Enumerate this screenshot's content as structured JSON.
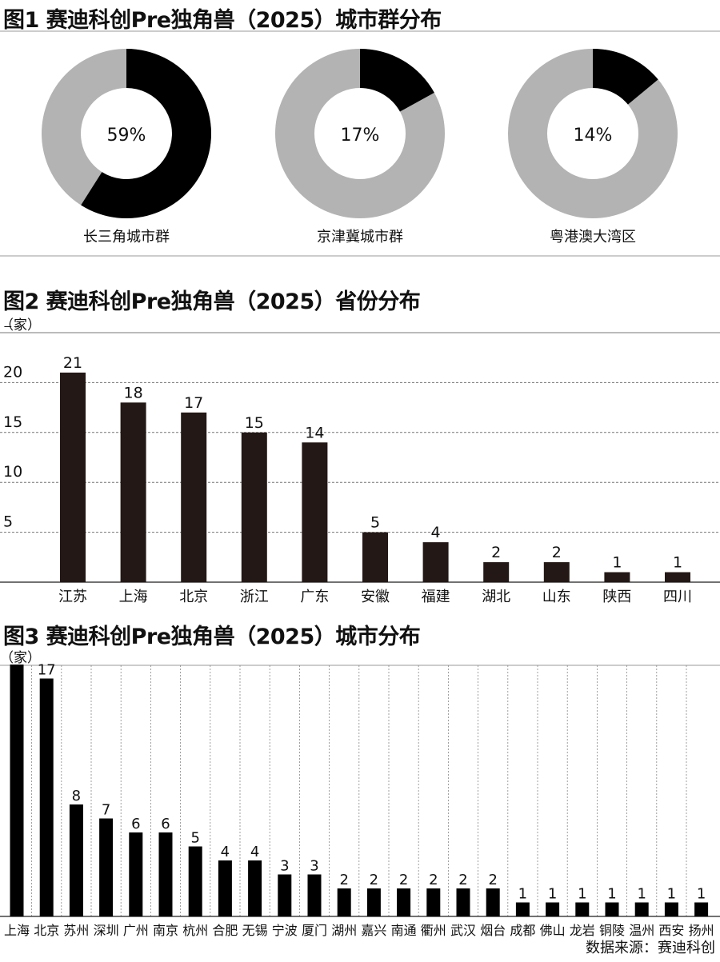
{
  "chart_data": [
    {
      "type": "pie",
      "title": "图1 赛迪科创Pre独角兽（2025）城市群分布",
      "slices": [
        {
          "label": "长三角城市群",
          "value": 59,
          "value_label": "59%"
        },
        {
          "label": "京津冀城市群",
          "value": 17,
          "value_label": "17%"
        },
        {
          "label": "粤港澳大湾区",
          "value": 14,
          "value_label": "14%"
        }
      ],
      "colors": {
        "highlight": "#000000",
        "rest": "#b3b3b3"
      }
    },
    {
      "type": "bar",
      "title": "图2 赛迪科创Pre独角兽（2025）省份分布",
      "ylabel": "（家）",
      "ylim": [
        0,
        25
      ],
      "yticks": [
        "5",
        "10",
        "15",
        "20",
        "25"
      ],
      "categories": [
        "江苏",
        "上海",
        "北京",
        "浙江",
        "广东",
        "安徽",
        "福建",
        "湖北",
        "山东",
        "陕西",
        "四川"
      ],
      "values": [
        21,
        18,
        17,
        15,
        14,
        5,
        4,
        2,
        2,
        1,
        1
      ],
      "color": "#231815"
    },
    {
      "type": "bar",
      "title": "图3 赛迪科创Pre独角兽（2025）城市分布",
      "ylabel": "（家）",
      "ylim": [
        0,
        20
      ],
      "categories": [
        "上海",
        "北京",
        "苏州",
        "深圳",
        "广州",
        "南京",
        "杭州",
        "合肥",
        "无锡",
        "宁波",
        "厦门",
        "湖州",
        "嘉兴",
        "南通",
        "衢州",
        "武汉",
        "烟台",
        "成都",
        "佛山",
        "龙岩",
        "铜陵",
        "温州",
        "西安",
        "扬州"
      ],
      "values": [
        18,
        17,
        8,
        7,
        6,
        6,
        5,
        4,
        4,
        3,
        3,
        2,
        2,
        2,
        2,
        2,
        2,
        1,
        1,
        1,
        1,
        1,
        1,
        1
      ],
      "color": "#000000"
    }
  ],
  "source": "数据来源：赛迪科创"
}
